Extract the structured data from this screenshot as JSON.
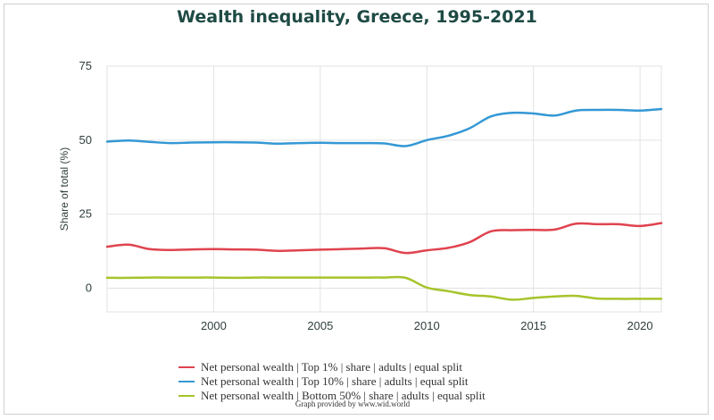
{
  "chart_data": {
    "type": "line",
    "title": "Wealth inequality, Greece, 1995-2021",
    "xlabel": "",
    "ylabel": "Share of total (%)",
    "xlim": [
      1995,
      2021
    ],
    "ylim": [
      -8,
      75
    ],
    "x_ticks": [
      2000,
      2005,
      2010,
      2015,
      2020
    ],
    "y_ticks": [
      0,
      25,
      50,
      75
    ],
    "grid": true,
    "legend_position": "bottom",
    "x": [
      1995,
      1996,
      1997,
      1998,
      1999,
      2000,
      2001,
      2002,
      2003,
      2004,
      2005,
      2006,
      2007,
      2008,
      2009,
      2010,
      2011,
      2012,
      2013,
      2014,
      2015,
      2016,
      2017,
      2018,
      2019,
      2020,
      2021
    ],
    "series": [
      {
        "name": "Net personal wealth | Top 1% | share | adults | equal split",
        "color": "#e0434f",
        "values": [
          14.0,
          14.7,
          13.2,
          12.9,
          13.1,
          13.2,
          13.1,
          13.0,
          12.6,
          12.8,
          13.0,
          13.2,
          13.4,
          13.5,
          11.9,
          12.8,
          13.6,
          15.5,
          19.2,
          19.6,
          19.7,
          19.8,
          21.8,
          21.6,
          21.6,
          21.0,
          22.0
        ]
      },
      {
        "name": "Net personal wealth | Top 10% | share | adults | equal split",
        "color": "#3498d5",
        "values": [
          49.5,
          49.9,
          49.4,
          49.0,
          49.2,
          49.3,
          49.3,
          49.2,
          48.8,
          49.0,
          49.1,
          49.0,
          49.0,
          48.9,
          48.0,
          50.0,
          51.5,
          54.0,
          58.0,
          59.2,
          59.0,
          58.3,
          60.0,
          60.2,
          60.2,
          60.0,
          60.5
        ]
      },
      {
        "name": "Net personal wealth | Bottom 50% | share | adults | equal split",
        "color": "#a6c42b",
        "values": [
          3.5,
          3.5,
          3.6,
          3.6,
          3.6,
          3.6,
          3.5,
          3.6,
          3.6,
          3.6,
          3.6,
          3.6,
          3.6,
          3.6,
          3.5,
          0.2,
          -1.0,
          -2.3,
          -2.8,
          -3.9,
          -3.3,
          -2.8,
          -2.6,
          -3.5,
          -3.6,
          -3.6,
          -3.6
        ]
      }
    ]
  },
  "credit": "Graph provided by www.wid.world"
}
